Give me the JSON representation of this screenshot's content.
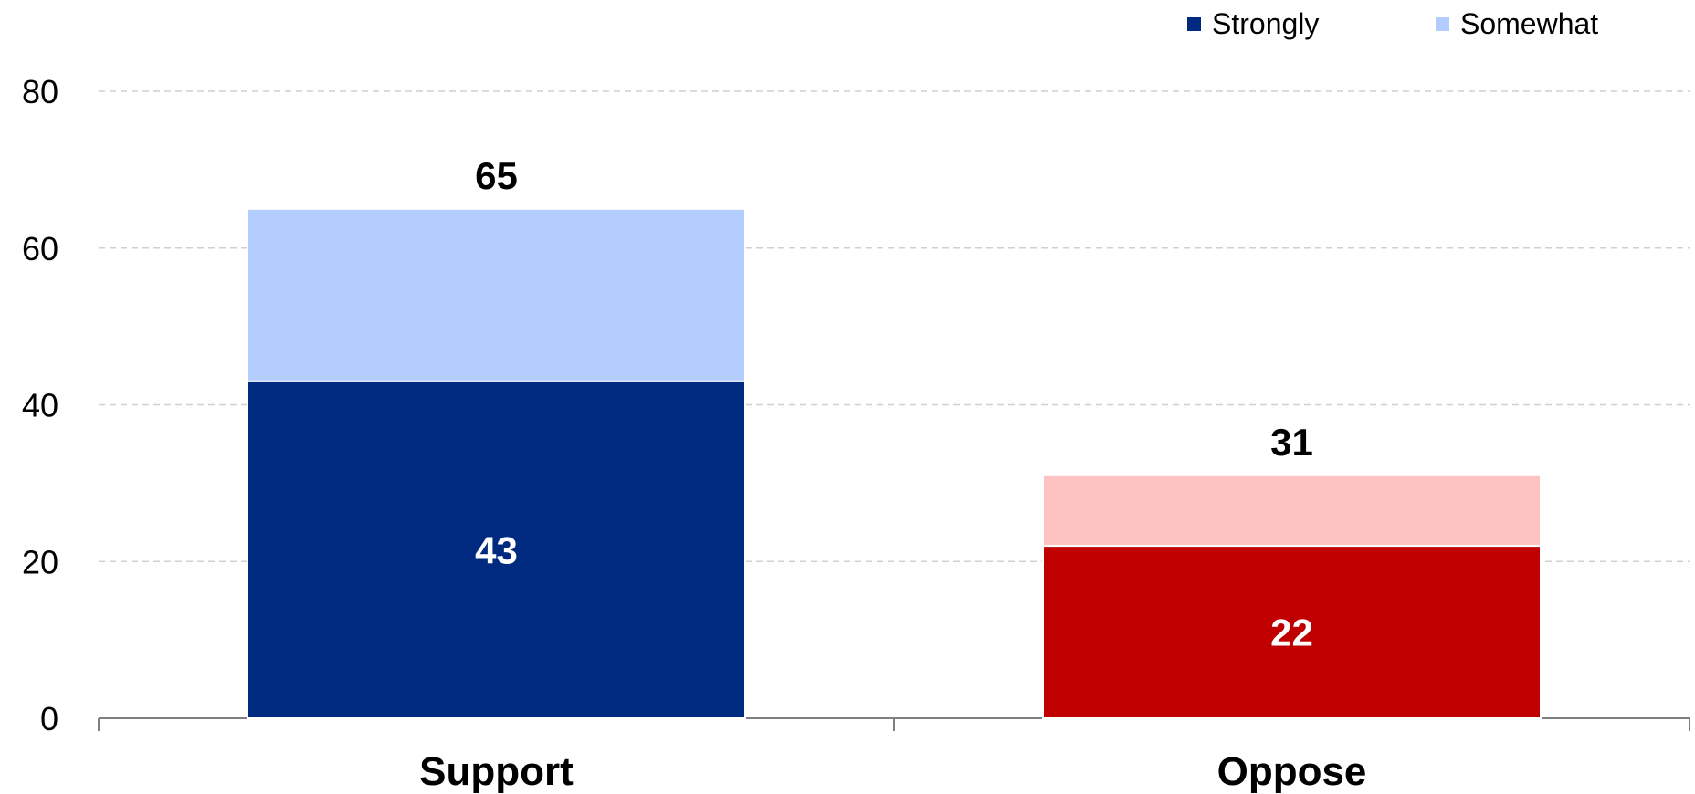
{
  "chart_data": {
    "type": "bar",
    "stacked": true,
    "categories": [
      "Support",
      "Oppose"
    ],
    "series": [
      {
        "name": "Strongly",
        "values": [
          43,
          22
        ]
      },
      {
        "name": "Somewhat",
        "values": [
          22,
          9
        ]
      }
    ],
    "totals": [
      65,
      31
    ],
    "ylim": [
      0,
      80
    ],
    "yticks": [
      0,
      20,
      40,
      60,
      80
    ],
    "grid": true,
    "legend_position": "top-right",
    "colors": {
      "strongly": [
        "#002A80",
        "#C00000"
      ],
      "somewhat": [
        "#B3CDFF",
        "#FFC2C2"
      ],
      "legend_strongly": "#002A80",
      "legend_somewhat": "#B3CDFF",
      "grid": "#D0D0D0",
      "axis": "#808080"
    }
  }
}
